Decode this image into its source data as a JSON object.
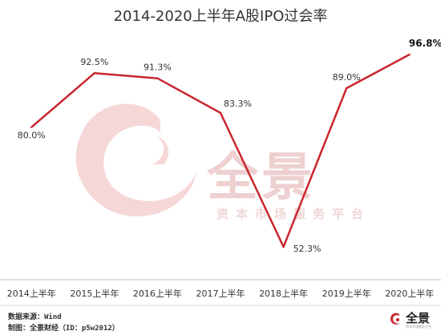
{
  "chart_data": {
    "type": "line",
    "title": "2014-2020上半年A股IPO过会率",
    "categories": [
      "2014上半年",
      "2015上半年",
      "2016上半年",
      "2017上半年",
      "2018上半年",
      "2019上半年",
      "2020上半年"
    ],
    "series": [
      {
        "values": [
          80.0,
          92.5,
          91.3,
          83.3,
          52.3,
          89.0,
          96.8
        ]
      }
    ],
    "data_labels": [
      "80.0%",
      "92.5%",
      "91.3%",
      "83.3%",
      "52.3%",
      "89.0%",
      "96.8%"
    ],
    "highlight_last_label": true,
    "ylim": [
      46,
      102
    ],
    "grid": false,
    "line_color": "#c9262e"
  },
  "watermark": {
    "brand": "全景",
    "tagline": "资本市场服务平台"
  },
  "footer": {
    "source": "数据来源：Wind",
    "credit": "制图：全景财经（ID：p5w2012）"
  },
  "brand_logo": {
    "name": "全景",
    "tagline": "资本市场服务平台",
    "color": "#c9262e"
  }
}
